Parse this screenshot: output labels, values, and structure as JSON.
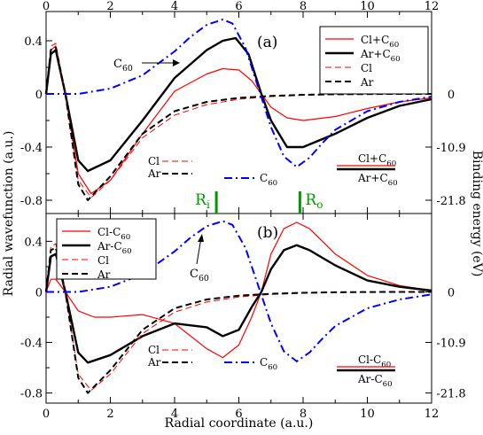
{
  "colors": {
    "red": "#ff0000",
    "black": "#000000",
    "blue": "#0000ff",
    "green": "#009900"
  },
  "chart_data": [
    {
      "panel": "(a)",
      "type": "line",
      "xlabel": "",
      "ylabel": "",
      "xlim": [
        0,
        12
      ],
      "ylim": [
        -0.9,
        0.62
      ],
      "x_ticks": [
        0,
        2,
        4,
        6,
        8,
        10,
        12
      ],
      "x_tick_labels": [
        "0",
        "2",
        "4",
        "6",
        "8",
        "10",
        "12"
      ],
      "y_ticks": [
        0.4,
        0,
        -0.4,
        -0.8
      ],
      "y_tick_labels": [
        "0.4",
        "0",
        "-0.4",
        "-0.8"
      ],
      "right_ticks": [
        0,
        -0.4,
        -0.8
      ],
      "right_tick_labels": [
        "0",
        "-10.9",
        "-21.8"
      ],
      "legend": {
        "position": "top-right",
        "entries": [
          "Cl+C60",
          "Ar+C60",
          "Cl",
          "Ar"
        ]
      },
      "series": [
        {
          "name": "Cl+C60",
          "color": "#ff0000",
          "style": "solid",
          "width": 1.2,
          "x": [
            0,
            0.15,
            0.3,
            0.6,
            1.0,
            1.4,
            2.0,
            3.0,
            4.0,
            5.0,
            5.5,
            6.0,
            6.4,
            6.7,
            7.0,
            7.5,
            8.0,
            9.0,
            10.0,
            11.0,
            12.0
          ],
          "y": [
            0,
            0.33,
            0.36,
            0.0,
            -0.6,
            -0.75,
            -0.65,
            -0.3,
            0.02,
            0.15,
            0.19,
            0.18,
            0.1,
            0.0,
            -0.1,
            -0.18,
            -0.2,
            -0.17,
            -0.11,
            -0.06,
            -0.03
          ]
        },
        {
          "name": "Ar+C60",
          "color": "#000000",
          "style": "solid",
          "width": 2.4,
          "x": [
            0,
            0.15,
            0.3,
            0.6,
            1.0,
            1.3,
            2.0,
            3.0,
            4.0,
            5.0,
            5.5,
            5.9,
            6.3,
            6.7,
            7.0,
            7.5,
            8.0,
            9.0,
            10.0,
            11.0,
            12.0
          ],
          "y": [
            0,
            0.3,
            0.33,
            0.0,
            -0.5,
            -0.58,
            -0.5,
            -0.2,
            0.12,
            0.33,
            0.4,
            0.42,
            0.3,
            0.0,
            -0.2,
            -0.4,
            -0.4,
            -0.3,
            -0.18,
            -0.09,
            -0.04
          ]
        },
        {
          "name": "Cl",
          "color": "#ff0000",
          "style": "dash",
          "width": 1.0,
          "x": [
            0,
            0.15,
            0.3,
            0.6,
            1.0,
            1.4,
            2.0,
            3.0,
            4.0,
            5.0,
            6.0,
            7.0,
            8.0,
            9.0,
            10.0,
            11.0,
            12.0
          ],
          "y": [
            0,
            0.36,
            0.38,
            0.0,
            -0.65,
            -0.78,
            -0.65,
            -0.33,
            -0.16,
            -0.08,
            -0.04,
            -0.02,
            -0.01,
            -0.005,
            -0.002,
            0,
            0
          ]
        },
        {
          "name": "Ar",
          "color": "#000000",
          "style": "dash",
          "width": 2.0,
          "x": [
            0,
            0.15,
            0.3,
            0.6,
            1.0,
            1.3,
            2.0,
            3.0,
            4.0,
            5.0,
            6.0,
            7.0,
            8.0,
            9.0,
            10.0,
            11.0,
            12.0
          ],
          "y": [
            0,
            0.33,
            0.35,
            0.0,
            -0.68,
            -0.8,
            -0.62,
            -0.3,
            -0.13,
            -0.06,
            -0.03,
            -0.015,
            -0.007,
            -0.003,
            -0.001,
            0,
            0
          ]
        },
        {
          "name": "C60",
          "color": "#0000ff",
          "style": "dashdot",
          "width": 2.0,
          "x": [
            0,
            1.0,
            2.0,
            3.0,
            4.0,
            4.5,
            5.0,
            5.5,
            5.8,
            6.2,
            6.6,
            7.0,
            7.4,
            7.8,
            8.2,
            8.6,
            9.0,
            10.0,
            11.0,
            12.0
          ],
          "y": [
            0,
            0.0,
            0.04,
            0.14,
            0.32,
            0.43,
            0.52,
            0.56,
            0.53,
            0.35,
            0.05,
            -0.25,
            -0.47,
            -0.55,
            -0.48,
            -0.37,
            -0.27,
            -0.13,
            -0.06,
            -0.02
          ]
        }
      ],
      "annotations": {
        "c60_arrow_label": "C60",
        "bottom_legend_left": [
          "Cl",
          "Ar"
        ],
        "bottom_legend_mid": "C60",
        "bottom_legend_right": [
          "Cl+C60",
          "Ar+C60"
        ]
      }
    },
    {
      "panel": "(b)",
      "type": "line",
      "xlabel": "Radial coordinate (a.u.)",
      "ylabel": "",
      "xlim": [
        0,
        12
      ],
      "ylim": [
        -0.88,
        0.62
      ],
      "x_ticks": [
        0,
        2,
        4,
        6,
        8,
        10,
        12
      ],
      "x_tick_labels": [
        "0",
        "2",
        "4",
        "6",
        "8",
        "10",
        "12"
      ],
      "y_ticks": [
        0.4,
        0,
        -0.4,
        -0.8
      ],
      "y_tick_labels": [
        "0.4",
        "0",
        "-0.4",
        "-0.8"
      ],
      "right_ticks": [
        0,
        -0.4,
        -0.8
      ],
      "right_tick_labels": [
        "0",
        "-10.9",
        "-21.8"
      ],
      "legend": {
        "position": "top-left",
        "entries": [
          "Cl-C60",
          "Ar-C60",
          "Cl",
          "Ar"
        ]
      },
      "series": [
        {
          "name": "Cl-C60",
          "color": "#ff0000",
          "style": "solid",
          "width": 1.2,
          "x": [
            0,
            0.15,
            0.3,
            0.6,
            1.0,
            1.5,
            2.0,
            3.0,
            4.0,
            5.0,
            5.5,
            6.0,
            6.4,
            6.7,
            7.0,
            7.4,
            7.8,
            8.2,
            9.0,
            10.0,
            11.0,
            12.0
          ],
          "y": [
            0,
            0.1,
            0.1,
            0.0,
            -0.15,
            -0.2,
            -0.2,
            -0.18,
            -0.25,
            -0.45,
            -0.52,
            -0.42,
            -0.2,
            0.0,
            0.3,
            0.5,
            0.55,
            0.5,
            0.3,
            0.13,
            0.05,
            0.01
          ]
        },
        {
          "name": "Ar-C60",
          "color": "#000000",
          "style": "solid",
          "width": 2.4,
          "x": [
            0,
            0.15,
            0.3,
            0.6,
            1.0,
            1.3,
            2.0,
            3.0,
            4.0,
            5.0,
            5.5,
            6.0,
            6.4,
            6.7,
            7.0,
            7.4,
            7.8,
            8.2,
            9.0,
            10.0,
            11.0,
            12.0
          ],
          "y": [
            0,
            0.28,
            0.3,
            0.0,
            -0.48,
            -0.56,
            -0.5,
            -0.35,
            -0.25,
            -0.28,
            -0.35,
            -0.3,
            -0.12,
            0.0,
            0.18,
            0.33,
            0.37,
            0.33,
            0.21,
            0.09,
            0.04,
            0.01
          ]
        },
        {
          "name": "Cl",
          "color": "#ff0000",
          "style": "dash",
          "width": 1.0,
          "x": [
            0,
            0.15,
            0.3,
            0.6,
            1.0,
            1.4,
            2.0,
            3.0,
            4.0,
            5.0,
            6.0,
            7.0,
            8.0,
            9.0,
            10.0,
            11.0,
            12.0
          ],
          "y": [
            0,
            0.36,
            0.38,
            0.0,
            -0.65,
            -0.78,
            -0.65,
            -0.33,
            -0.16,
            -0.08,
            -0.04,
            -0.02,
            -0.01,
            -0.005,
            -0.002,
            0,
            0
          ]
        },
        {
          "name": "Ar",
          "color": "#000000",
          "style": "dash",
          "width": 2.0,
          "x": [
            0,
            0.15,
            0.3,
            0.6,
            1.0,
            1.3,
            2.0,
            3.0,
            4.0,
            5.0,
            6.0,
            7.0,
            8.0,
            9.0,
            10.0,
            11.0,
            12.0
          ],
          "y": [
            0,
            0.33,
            0.35,
            0.0,
            -0.68,
            -0.8,
            -0.62,
            -0.3,
            -0.13,
            -0.06,
            -0.03,
            -0.015,
            -0.007,
            -0.003,
            -0.001,
            0,
            0
          ]
        },
        {
          "name": "C60",
          "color": "#0000ff",
          "style": "dashdot",
          "width": 2.0,
          "x": [
            0,
            1.0,
            2.0,
            3.0,
            4.0,
            4.5,
            5.0,
            5.5,
            5.8,
            6.2,
            6.6,
            7.0,
            7.4,
            7.8,
            8.2,
            8.6,
            9.0,
            10.0,
            11.0,
            12.0
          ],
          "y": [
            0,
            0.0,
            0.04,
            0.14,
            0.32,
            0.43,
            0.52,
            0.56,
            0.53,
            0.35,
            0.05,
            -0.25,
            -0.47,
            -0.55,
            -0.48,
            -0.37,
            -0.27,
            -0.13,
            -0.06,
            -0.02
          ]
        }
      ],
      "annotations": {
        "c60_arrow_label": "C60",
        "bottom_legend_left": [
          "Cl",
          "Ar"
        ],
        "bottom_legend_mid": "C60",
        "bottom_legend_right": [
          "Cl-C60",
          "Ar-C60"
        ]
      }
    }
  ],
  "shared": {
    "ylabel_left": "Radial wavefunction (a.u.)",
    "ylabel_right": "Binding energy (eV)",
    "top_x_tick_labels": [
      "0",
      "2",
      "4",
      "6",
      "8",
      "10",
      "12"
    ],
    "shell_markers": {
      "Ri": {
        "x": 5.3,
        "label": "Ri"
      },
      "Ro": {
        "x": 7.9,
        "label": "Ro"
      }
    }
  }
}
